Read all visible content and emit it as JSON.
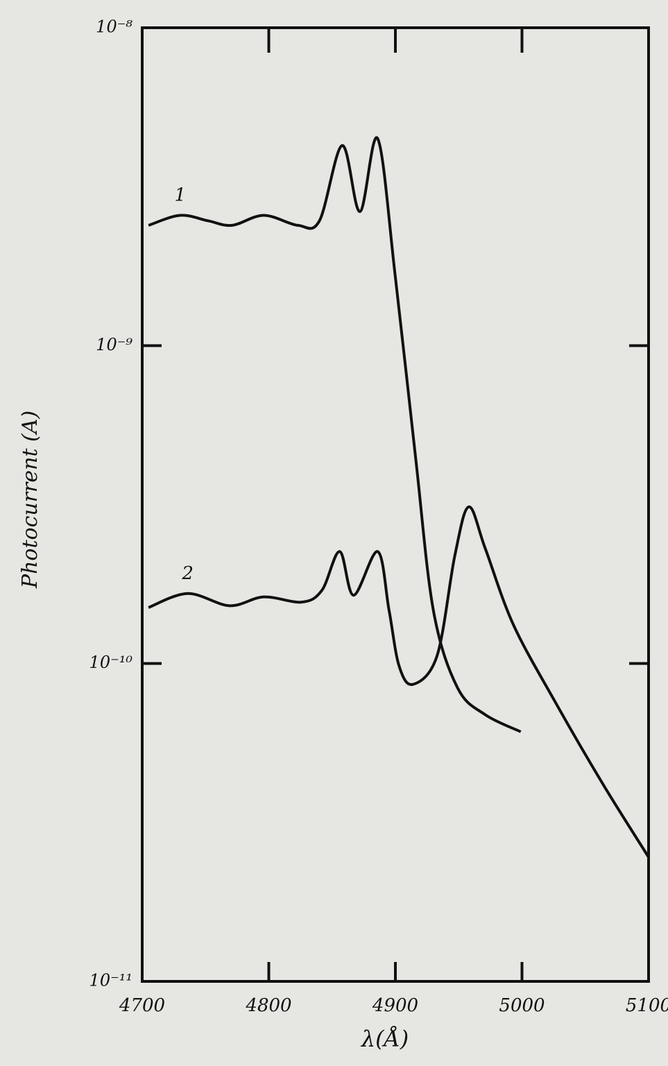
{
  "chart_data": {
    "type": "line",
    "x_label": "λ(Å)",
    "y_label": "Photocurrent (A)",
    "log_y": true,
    "xlim": [
      4700,
      5100
    ],
    "ylim": [
      1e-11,
      1e-08
    ],
    "xticks": [
      4700,
      4800,
      4900,
      5000,
      5100
    ],
    "yticks": [
      {
        "value": 1e-11,
        "label": "10⁻¹¹"
      },
      {
        "value": 1e-10,
        "label": "10⁻¹⁰"
      },
      {
        "value": 1e-09,
        "label": "10⁻⁹"
      },
      {
        "value": 1e-08,
        "label": "10⁻⁸"
      }
    ],
    "series": [
      {
        "name": "1",
        "color": "#111111",
        "x": [
          4705,
          4730,
          4752,
          4771,
          4796,
          4823,
          4840,
          4858,
          4872,
          4886,
          4900,
          4916,
          4930,
          4949,
          4971,
          4999
        ],
        "values": [
          2.39e-09,
          2.57e-09,
          2.47e-09,
          2.39e-09,
          2.57e-09,
          2.39e-09,
          2.47e-09,
          4.26e-09,
          2.64e-09,
          4.48e-09,
          1.64e-09,
          4.43e-10,
          1.47e-10,
          8.4e-11,
          6.9e-11,
          6.1e-11
        ]
      },
      {
        "name": "2",
        "color": "#111111",
        "x": [
          4705,
          4736,
          4769,
          4796,
          4826,
          4842,
          4856,
          4867,
          4886,
          4895,
          4903,
          4914,
          4933,
          4947,
          4958,
          4971,
          4993,
          5026,
          5064,
          5100
        ],
        "values": [
          1.5e-10,
          1.66e-10,
          1.52e-10,
          1.62e-10,
          1.56e-10,
          1.7e-10,
          2.25e-10,
          1.64e-10,
          2.25e-10,
          1.47e-10,
          9.8e-11,
          8.6e-11,
          1.06e-10,
          2.19e-10,
          3.11e-10,
          2.3e-10,
          1.33e-10,
          7.6e-11,
          4.17e-11,
          2.46e-11
        ]
      }
    ]
  }
}
